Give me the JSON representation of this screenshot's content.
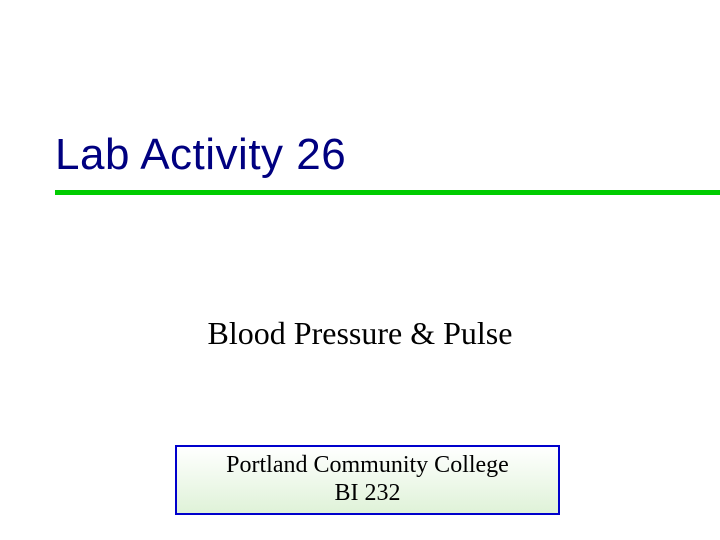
{
  "title": {
    "text": "Lab Activity 26",
    "fontsize": 44,
    "color": "#000080"
  },
  "underline": {
    "color": "#00cc00",
    "thickness": 5
  },
  "subtitle": {
    "text": "Blood Pressure & Pulse",
    "fontsize": 32,
    "color": "#000000"
  },
  "footer": {
    "line1": "Portland Community College",
    "line2": "BI 232",
    "fontsize": 24,
    "text_color": "#000000",
    "border_color": "#0000cc",
    "border_width": 2,
    "bg_top": "#ffffff",
    "bg_bottom": "#dff2d8"
  },
  "background_color": "#ffffff"
}
